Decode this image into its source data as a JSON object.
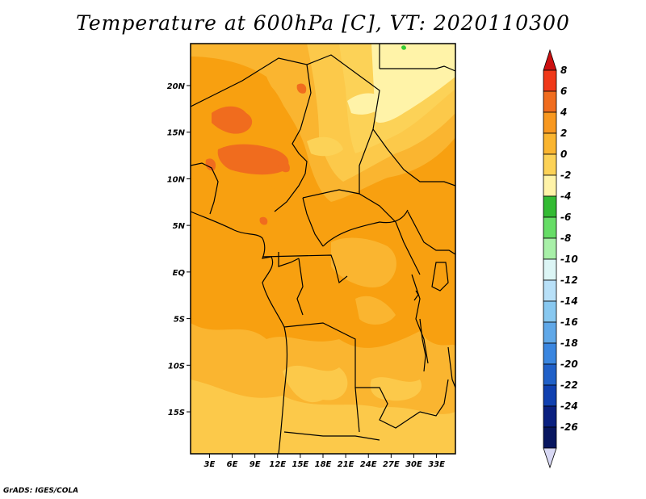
{
  "title": "Temperature at 600hPa [C], VT: 2020110300",
  "footer": "GrADS: IGES/COLA",
  "map": {
    "lat_labels": [
      "20N",
      "15N",
      "10N",
      "5N",
      "EQ",
      "5S",
      "10S",
      "15S"
    ],
    "lon_labels": [
      "3E",
      "6E",
      "9E",
      "12E",
      "15E",
      "18E",
      "21E",
      "24E",
      "27E",
      "30E",
      "33E"
    ],
    "lat_values": [
      20,
      15,
      10,
      5,
      0,
      -5,
      -10,
      -15
    ],
    "lon_values": [
      3,
      6,
      9,
      12,
      15,
      18,
      21,
      24,
      27,
      30,
      33
    ],
    "lat_range": [
      -19.5,
      24.5
    ],
    "lon_range": [
      0.5,
      35.5
    ],
    "colors": {
      "pale_yellow": "#fff3a8",
      "light_orange": "#fcc94a",
      "mid_orange": "#fab530",
      "orange": "#f8a010",
      "dark_orange": "#f06c1e",
      "green": "#33cc33"
    }
  },
  "colorbar": {
    "labels": [
      "8",
      "6",
      "4",
      "2",
      "0",
      "-2",
      "-4",
      "-6",
      "-8",
      "-10",
      "-12",
      "-14",
      "-16",
      "-18",
      "-20",
      "-22",
      "-24",
      "-26"
    ],
    "colors": [
      "#cc1010",
      "#f03818",
      "#f06c1e",
      "#f89820",
      "#fab530",
      "#fcd257",
      "#fff3a8",
      "#33bb33",
      "#66dd66",
      "#a8f0a8",
      "#dcf5f5",
      "#b8e0f8",
      "#88c8f0",
      "#60a8e8",
      "#3a86e0",
      "#2060c8",
      "#1040b0",
      "#0a2080",
      "#081660",
      "#d8d8f4"
    ]
  }
}
